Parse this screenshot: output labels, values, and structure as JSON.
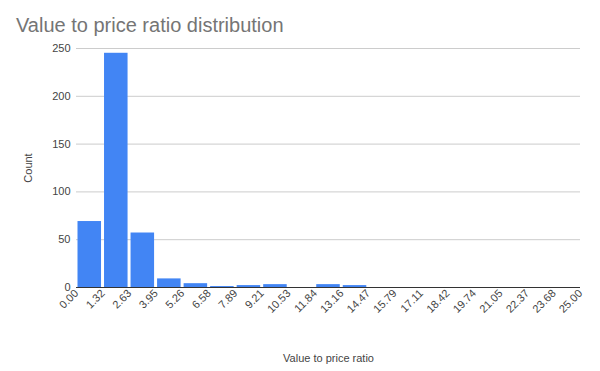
{
  "chart_data": {
    "type": "histogram",
    "title": "Value to price ratio distribution",
    "x_label": "Value to price ratio",
    "y_label": "Count",
    "bins": [
      0,
      1.3158,
      2.6316,
      3.9474,
      5.2632,
      6.5789,
      7.8947,
      9.2105,
      10.5263,
      11.8421,
      13.1579,
      14.4737,
      15.7895,
      17.1053,
      18.4211,
      19.7368,
      21.0526,
      22.3684,
      23.6842,
      25
    ],
    "values": [
      69,
      245,
      57,
      9,
      4,
      1,
      2,
      3,
      0,
      3,
      2,
      0,
      0,
      0,
      0,
      0,
      0,
      0,
      0
    ],
    "color": "#4285f4",
    "xlim": [
      0,
      25
    ],
    "xticks": [
      {
        "value": 0,
        "label": "0.00"
      },
      {
        "value": 1.3158,
        "label": "1.32"
      },
      {
        "value": 2.6316,
        "label": "2.63"
      },
      {
        "value": 3.9474,
        "label": "3.95"
      },
      {
        "value": 5.2632,
        "label": "5.26"
      },
      {
        "value": 6.5789,
        "label": "6.58"
      },
      {
        "value": 7.8947,
        "label": "7.89"
      },
      {
        "value": 9.2105,
        "label": "9.21"
      },
      {
        "value": 10.5263,
        "label": "10.53"
      },
      {
        "value": 11.8421,
        "label": "11.84"
      },
      {
        "value": 13.1579,
        "label": "13.16"
      },
      {
        "value": 14.4737,
        "label": "14.47"
      },
      {
        "value": 15.7895,
        "label": "15.79"
      },
      {
        "value": 17.1053,
        "label": "17.11"
      },
      {
        "value": 18.4211,
        "label": "18.42"
      },
      {
        "value": 19.7368,
        "label": "19.74"
      },
      {
        "value": 21.0526,
        "label": "21.05"
      },
      {
        "value": 22.3684,
        "label": "22.37"
      },
      {
        "value": 23.6842,
        "label": "23.68"
      },
      {
        "value": 25,
        "label": "25.00"
      }
    ],
    "ylim": [
      0,
      250
    ],
    "yticks": [
      0,
      50,
      100,
      150,
      200,
      250
    ],
    "grid": true
  }
}
